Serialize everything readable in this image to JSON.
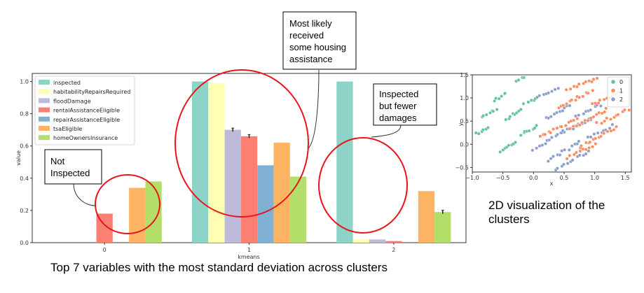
{
  "chart_data": [
    {
      "type": "bar",
      "xlabel": "kmeans",
      "ylabel": "value",
      "ylim": [
        0,
        1.05
      ],
      "yticks": [
        "0.0",
        "0.2",
        "0.4",
        "0.6",
        "0.8",
        "1.0"
      ],
      "categories": [
        "0",
        "1",
        "2"
      ],
      "legend_position": "top-left",
      "series": [
        {
          "name": "inspected",
          "color": "#8dd3c7",
          "values": [
            0.0,
            1.0,
            1.0
          ]
        },
        {
          "name": "habitabilityRepairsRequired",
          "color": "#ffffb3",
          "values": [
            0.0,
            0.99,
            0.02
          ]
        },
        {
          "name": "floodDamage",
          "color": "#bebada",
          "values": [
            0.0,
            0.7,
            0.02
          ]
        },
        {
          "name": "rentalAssistanceEligible",
          "color": "#fb8072",
          "values": [
            0.18,
            0.66,
            0.01
          ]
        },
        {
          "name": "repairAssistanceEligible",
          "color": "#80b1d3",
          "values": [
            0.0,
            0.48,
            0.0
          ]
        },
        {
          "name": "tsaEligible",
          "color": "#fdb462",
          "values": [
            0.34,
            0.62,
            0.32
          ]
        },
        {
          "name": "homeOwnersInsurance",
          "color": "#b3de69",
          "values": [
            0.38,
            0.41,
            0.19
          ]
        }
      ]
    },
    {
      "type": "scatter",
      "xlabel": "x",
      "ylabel": "y",
      "xlim": [
        -1.0,
        1.6
      ],
      "ylim": [
        -0.6,
        1.5
      ],
      "xticks": [
        "−1.0",
        "−0.5",
        "0.0",
        "0.5",
        "1.0",
        "1.5"
      ],
      "yticks": [
        "−0.5",
        "0.0",
        "0.5",
        "1.0",
        "1.5"
      ],
      "legend_position": "top-right",
      "series": [
        {
          "name": "0",
          "color": "#66c2a5"
        },
        {
          "name": "1",
          "color": "#fc8d62"
        },
        {
          "name": "2",
          "color": "#8da0cb"
        }
      ]
    }
  ],
  "annotations": {
    "not_inspected": "Not\nInspected",
    "most_likely": "Most likely\nreceived\nsome housing\nassistance",
    "inspected_fewer": "Inspected\nbut fewer\ndamages",
    "caption_main": "Top 7 variables with the most standard deviation across clusters",
    "caption_side": "2D visualization of the\nclusters"
  }
}
